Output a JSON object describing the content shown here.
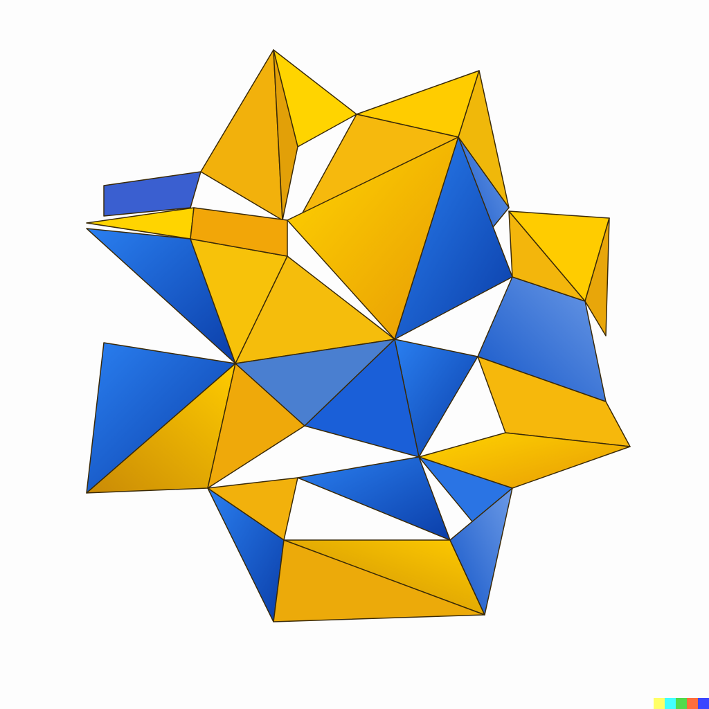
{
  "image": {
    "subject": "",
    "palette": {
      "background": "#fdfdfd",
      "gold": "#f2b10c",
      "gold_light": "#ffd400",
      "gold_dark": "#c98a06",
      "blue": "#1565d8",
      "blue_light": "#5b8fe0",
      "blue_dark": "#0b3ea8",
      "edge": "#3a2a08"
    }
  },
  "signature_strip": {
    "colors": [
      "#ffff66",
      "#42ffff",
      "#51da4c",
      "#ff6e3c",
      "#3c46ff"
    ]
  }
}
